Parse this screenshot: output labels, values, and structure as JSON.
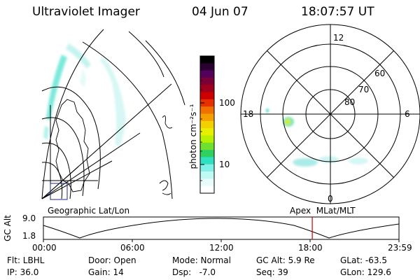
{
  "header": {
    "instrument": "Ultraviolet Imager",
    "date": "04 Jun 07",
    "time": "18:07:57 UT"
  },
  "colorbar": {
    "unit_label": "photon cm⁻²s⁻¹",
    "ticks": [
      "100",
      "10"
    ],
    "colors": [
      "#000000",
      "#2a0033",
      "#55005a",
      "#7a0035",
      "#a0001e",
      "#cc0000",
      "#e63000",
      "#f07000",
      "#f5a000",
      "#f5d000",
      "#e8f000",
      "#b8f000",
      "#70e030",
      "#30d060",
      "#30e0c0",
      "#80f0e8",
      "#c0f8f4",
      "#e8fcfc",
      "#ffffff"
    ]
  },
  "geo_panel": {
    "label": "Geographic Lat/Lon"
  },
  "polar_panel": {
    "label": "Apex  MLat/MLT",
    "lat_labels": [
      "80",
      "70",
      "60"
    ],
    "mlt_labels": {
      "top": "12",
      "bottom": "0",
      "left": "18",
      "right": "6"
    }
  },
  "altitude_plot": {
    "ylabel": "GC Alt",
    "ytick_top": "9.0",
    "ytick_bottom": "1.8",
    "xticks": [
      "00:00",
      "06:00",
      "12:00",
      "18:00",
      "23:59"
    ],
    "marker_time": "18:07:57",
    "marker_color": "#cc0000"
  },
  "info": {
    "row1": {
      "flt": "Flt: LBHL",
      "door": "Door: Open",
      "mode": "Mode: Normal",
      "gc_alt": "GC Alt: 5.9 Re",
      "glat": "GLat: -63.5"
    },
    "row2": {
      "ip": "IP: 36.0",
      "gain": "Gain: 14",
      "dsp": "Dsp:   -7.0",
      "seq": "Seq: 39",
      "glon": "GLon: 129.6"
    }
  }
}
